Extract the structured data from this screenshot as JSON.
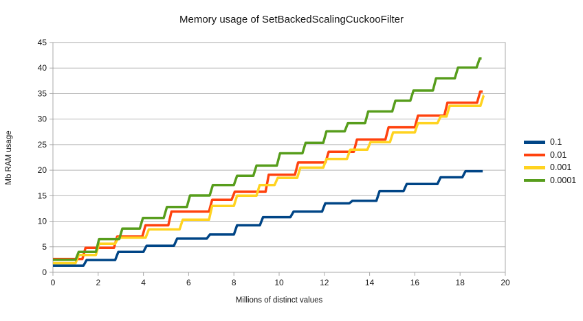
{
  "title": "Memory usage of SetBackedScalingCuckooFilter",
  "y_axis": {
    "title": "Mb RAM usage",
    "min": 0,
    "max": 45,
    "tick_step": 5,
    "ticks": [
      0,
      5,
      10,
      15,
      20,
      25,
      30,
      35,
      40,
      45
    ]
  },
  "x_axis": {
    "title": "Millions of distinct values",
    "min": 0,
    "max": 20,
    "tick_step": 2,
    "ticks": [
      0,
      2,
      4,
      6,
      8,
      10,
      12,
      14,
      16,
      18,
      20
    ]
  },
  "legend": {
    "position": "right",
    "items": [
      {
        "label": "0.1",
        "color": "#004586"
      },
      {
        "label": "0.01",
        "color": "#FF420E"
      },
      {
        "label": "0.001",
        "color": "#FFD320"
      },
      {
        "label": "0.0001",
        "color": "#579D1C"
      }
    ]
  },
  "colors": {
    "grid": "#b5b5b5",
    "axis": "#a8a8a8",
    "text": "#141414",
    "background": "#ffffff"
  },
  "chart_data": {
    "type": "line",
    "step": "after",
    "grid": "horizontal",
    "legend_position": "right",
    "title": "Memory usage of SetBackedScalingCuckooFilter",
    "xlabel": "Millions of distinct values",
    "ylabel": "Mb RAM usage",
    "xlim": [
      0,
      20
    ],
    "ylim": [
      0,
      45
    ],
    "series": [
      {
        "name": "0.1",
        "color": "#004586",
        "end_x": 19.0,
        "points": [
          [
            0,
            1.3
          ],
          [
            1.35,
            2.4
          ],
          [
            2.75,
            4.0
          ],
          [
            4.0,
            5.2
          ],
          [
            5.35,
            6.6
          ],
          [
            6.8,
            7.4
          ],
          [
            8.0,
            9.2
          ],
          [
            9.15,
            10.8
          ],
          [
            10.5,
            11.9
          ],
          [
            11.9,
            13.5
          ],
          [
            13.1,
            14.0
          ],
          [
            14.3,
            15.9
          ],
          [
            15.5,
            17.3
          ],
          [
            17.0,
            18.6
          ],
          [
            18.1,
            19.8
          ]
        ]
      },
      {
        "name": "0.01",
        "color": "#FF420E",
        "end_x": 19.0,
        "points": [
          [
            0,
            2.6
          ],
          [
            1.3,
            4.8
          ],
          [
            2.7,
            7.0
          ],
          [
            3.95,
            9.2
          ],
          [
            5.1,
            11.9
          ],
          [
            6.9,
            14.2
          ],
          [
            7.9,
            15.8
          ],
          [
            9.4,
            19.1
          ],
          [
            10.7,
            21.5
          ],
          [
            12.05,
            23.6
          ],
          [
            13.3,
            26.0
          ],
          [
            14.7,
            28.4
          ],
          [
            16.0,
            30.7
          ],
          [
            17.3,
            33.2
          ],
          [
            18.75,
            35.4
          ]
        ]
      },
      {
        "name": "0.001",
        "color": "#FFD320",
        "end_x": 19.05,
        "points": [
          [
            0,
            1.8
          ],
          [
            1.0,
            3.4
          ],
          [
            1.9,
            5.6
          ],
          [
            2.75,
            6.8
          ],
          [
            4.1,
            8.4
          ],
          [
            5.6,
            10.3
          ],
          [
            6.9,
            13.0
          ],
          [
            8.0,
            15.0
          ],
          [
            9.0,
            17.1
          ],
          [
            9.8,
            18.5
          ],
          [
            10.8,
            20.5
          ],
          [
            11.95,
            22.2
          ],
          [
            13.0,
            24.0
          ],
          [
            13.9,
            25.5
          ],
          [
            14.9,
            27.4
          ],
          [
            16.0,
            29.2
          ],
          [
            17.0,
            30.5
          ],
          [
            17.4,
            32.6
          ],
          [
            18.9,
            34.6
          ]
        ]
      },
      {
        "name": "0.0001",
        "color": "#579D1C",
        "end_x": 18.95,
        "points": [
          [
            0,
            2.45
          ],
          [
            1.0,
            4.0
          ],
          [
            1.9,
            6.5
          ],
          [
            2.93,
            8.55
          ],
          [
            3.84,
            10.65
          ],
          [
            4.9,
            12.8
          ],
          [
            5.92,
            15.05
          ],
          [
            6.93,
            17.1
          ],
          [
            8.0,
            18.9
          ],
          [
            8.86,
            20.9
          ],
          [
            9.9,
            23.3
          ],
          [
            11.03,
            25.35
          ],
          [
            11.95,
            27.6
          ],
          [
            12.9,
            29.2
          ],
          [
            13.8,
            31.5
          ],
          [
            15.0,
            33.6
          ],
          [
            15.8,
            35.6
          ],
          [
            16.8,
            38.0
          ],
          [
            17.77,
            40.1
          ],
          [
            18.73,
            41.9
          ]
        ]
      }
    ]
  }
}
